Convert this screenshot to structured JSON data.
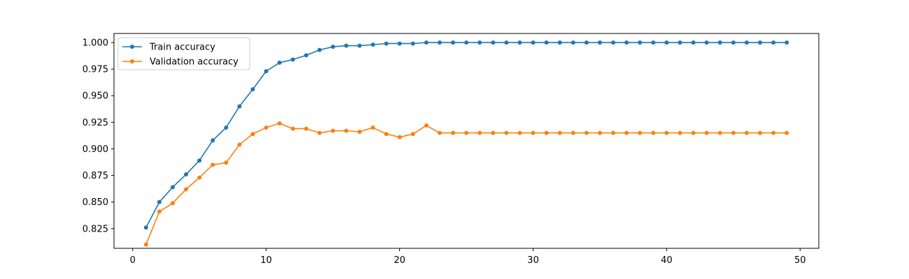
{
  "chart_data": {
    "type": "line",
    "title": "",
    "xlabel": "",
    "ylabel": "",
    "xlim": [
      -1.4,
      51.4
    ],
    "ylim": [
      0.8065,
      1.0085
    ],
    "xticks": [
      0,
      10,
      20,
      30,
      40,
      50
    ],
    "yticks": [
      0.825,
      0.85,
      0.875,
      0.9,
      0.925,
      0.95,
      0.975,
      1.0
    ],
    "ytick_labels": [
      "0.825",
      "0.850",
      "0.875",
      "0.900",
      "0.925",
      "0.950",
      "0.975",
      "1.000"
    ],
    "grid": false,
    "legend_position": "top-left",
    "x": [
      1,
      2,
      3,
      4,
      5,
      6,
      7,
      8,
      9,
      10,
      11,
      12,
      13,
      14,
      15,
      16,
      17,
      18,
      19,
      20,
      21,
      22,
      23,
      24,
      25,
      26,
      27,
      28,
      29,
      30,
      31,
      32,
      33,
      34,
      35,
      36,
      37,
      38,
      39,
      40,
      41,
      42,
      43,
      44,
      45,
      46,
      47,
      48,
      49
    ],
    "series": [
      {
        "name": "Train accuracy",
        "color": "#1f77b4",
        "values": [
          0.826,
          0.85,
          0.864,
          0.876,
          0.889,
          0.908,
          0.92,
          0.94,
          0.956,
          0.973,
          0.981,
          0.984,
          0.988,
          0.993,
          0.996,
          0.997,
          0.997,
          0.998,
          0.999,
          0.999,
          0.999,
          1.0,
          1.0,
          1.0,
          1.0,
          1.0,
          1.0,
          1.0,
          1.0,
          1.0,
          1.0,
          1.0,
          1.0,
          1.0,
          1.0,
          1.0,
          1.0,
          1.0,
          1.0,
          1.0,
          1.0,
          1.0,
          1.0,
          1.0,
          1.0,
          1.0,
          1.0,
          1.0,
          1.0
        ]
      },
      {
        "name": "Validation accuracy",
        "color": "#ff7f0e",
        "values": [
          0.81,
          0.841,
          0.849,
          0.862,
          0.873,
          0.885,
          0.887,
          0.904,
          0.914,
          0.92,
          0.924,
          0.919,
          0.919,
          0.915,
          0.917,
          0.917,
          0.916,
          0.92,
          0.914,
          0.911,
          0.914,
          0.922,
          0.915,
          0.915,
          0.915,
          0.915,
          0.915,
          0.915,
          0.915,
          0.915,
          0.915,
          0.915,
          0.915,
          0.915,
          0.915,
          0.915,
          0.915,
          0.915,
          0.915,
          0.915,
          0.915,
          0.915,
          0.915,
          0.915,
          0.915,
          0.915,
          0.915,
          0.915,
          0.915
        ]
      }
    ]
  }
}
